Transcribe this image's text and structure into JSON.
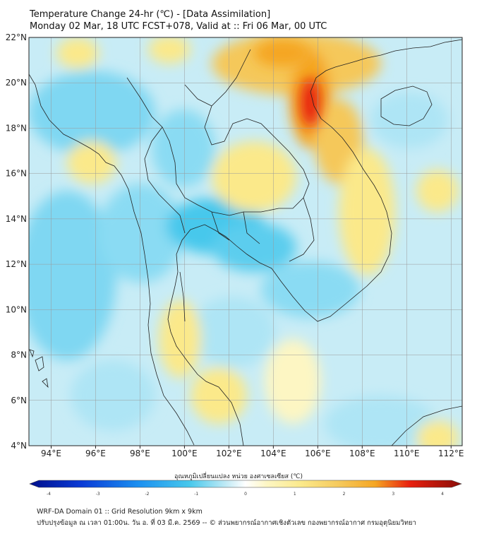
{
  "title": {
    "line1": "Temperature Change 24-hr (℃) - [Data Assimilation]",
    "line2": "Monday 02 Mar, 18 UTC FCST+078, Valid at :: Fri 06 Mar, 00 UTC"
  },
  "map": {
    "lat_labels": [
      "22°N",
      "20°N",
      "18°N",
      "16°N",
      "14°N",
      "12°N",
      "10°N",
      "8°N",
      "6°N",
      "4°N"
    ],
    "lon_labels": [
      "94°E",
      "96°E",
      "98°E",
      "100°E",
      "102°E",
      "104°E",
      "106°E",
      "108°E",
      "110°E",
      "112°E"
    ],
    "lat_range": [
      4,
      22
    ],
    "lon_range": [
      93,
      112.5
    ],
    "grid": true,
    "field": "24-hr temperature change",
    "colors": {
      "warm_max": "#e8200e",
      "warm": "#f5a623",
      "slight_warm": "#fbe98a",
      "neutral": "#ffffff",
      "slight_cool": "#c8ecf6",
      "cool": "#47c8ec",
      "cold_max": "#000f8c"
    }
  },
  "colorbar": {
    "label": "อุณหภูมิเปลี่ยนแปลง หน่วย องศาเซลเซียส (℃)",
    "ticks": [
      "-4",
      "-3",
      "-2",
      "-1",
      "0",
      "1",
      "2",
      "3",
      "4"
    ],
    "range": [
      -4,
      4
    ]
  },
  "footer": {
    "line1": "WRF-DA Domain 01 :: Grid Resolution 9km x 9km",
    "line2": "ปรับปรุงข้อมูล ณ เวลา 01:00น. วัน อ. ที่ 03 มี.ค. 2569 -- © ส่วนพยากรณ์อากาศเชิงตัวเลข กองพยากรณ์อากาศ กรมอุตุนิยมวิทยา"
  }
}
